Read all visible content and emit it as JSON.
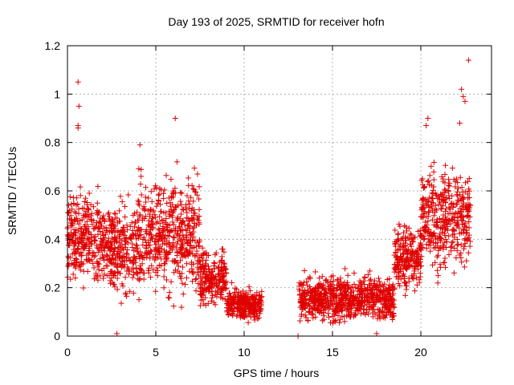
{
  "chart_data": {
    "type": "scatter",
    "title": "Day 193 of 2025, SRMTID for receiver hofn",
    "xlabel": "GPS time / hours",
    "ylabel": "SRMTID / TECUs",
    "xlim": [
      0,
      24
    ],
    "ylim": [
      0,
      1.2
    ],
    "xticks": [
      0,
      5,
      10,
      15,
      20
    ],
    "xtick_labels": [
      "0",
      "5",
      "10",
      "15",
      "20"
    ],
    "yticks": [
      0,
      0.2,
      0.4,
      0.6,
      0.8,
      1.0,
      1.2
    ],
    "ytick_labels": [
      "0",
      "0.2",
      "0.4",
      "0.6",
      "0.8",
      "1",
      "1.2"
    ],
    "grid": true,
    "marker": "+",
    "color": "#e00000",
    "series": [
      {
        "name": "SRMTID",
        "description": "~2 min samples; envelope per time segment (hours, typical range TECU)",
        "segments": [
          {
            "t": [
              0.0,
              2.0
            ],
            "y": [
              0.15,
              0.6
            ]
          },
          {
            "t": [
              2.0,
              4.0
            ],
            "y": [
              0.1,
              0.55
            ]
          },
          {
            "t": [
              4.0,
              7.5
            ],
            "y": [
              0.1,
              0.65
            ]
          },
          {
            "t": [
              7.5,
              9.0
            ],
            "y": [
              0.08,
              0.35
            ]
          },
          {
            "t": [
              9.0,
              11.0
            ],
            "y": [
              0.04,
              0.2
            ]
          },
          {
            "t": [
              13.1,
              18.5
            ],
            "y": [
              0.03,
              0.25
            ]
          },
          {
            "t": [
              18.5,
              20.0
            ],
            "y": [
              0.15,
              0.45
            ]
          },
          {
            "t": [
              20.0,
              22.8
            ],
            "y": [
              0.2,
              0.7
            ]
          }
        ],
        "notable_points": [
          {
            "x": 0.6,
            "y": 1.05
          },
          {
            "x": 0.65,
            "y": 0.95
          },
          {
            "x": 0.6,
            "y": 0.87
          },
          {
            "x": 0.6,
            "y": 0.86
          },
          {
            "x": 6.1,
            "y": 0.9
          },
          {
            "x": 4.1,
            "y": 0.79
          },
          {
            "x": 6.2,
            "y": 0.72
          },
          {
            "x": 22.7,
            "y": 1.14
          },
          {
            "x": 22.3,
            "y": 1.02
          },
          {
            "x": 22.4,
            "y": 0.99
          },
          {
            "x": 22.5,
            "y": 0.97
          },
          {
            "x": 22.2,
            "y": 0.88
          },
          {
            "x": 20.4,
            "y": 0.9
          },
          {
            "x": 20.3,
            "y": 0.87
          },
          {
            "x": 2.8,
            "y": 0.01
          },
          {
            "x": 13.05,
            "y": 0.0
          },
          {
            "x": 17.5,
            "y": 0.01
          }
        ]
      }
    ]
  }
}
